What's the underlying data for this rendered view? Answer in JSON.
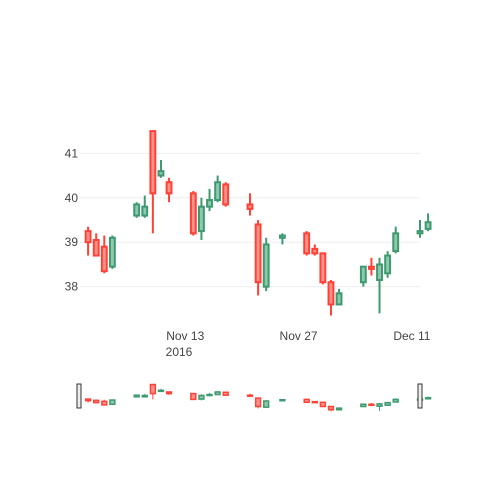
{
  "chart_data": {
    "type": "candlestick",
    "x_tick_labels": [
      "Nov 13",
      "Nov 27",
      "Dec 11"
    ],
    "x_tick_year": "2016",
    "x_tick_dates": [
      "2016-11-13",
      "2016-11-27",
      "2016-12-11"
    ],
    "y_ticks": [
      38,
      39,
      40,
      41
    ],
    "ylim": [
      37.25,
      42.2
    ],
    "xlim": [
      "2016-10-31",
      "2016-12-12"
    ],
    "grid": true,
    "rangeslider": true,
    "colors": {
      "increasing": "#3D9970",
      "decreasing": "#FF4136",
      "grid": "#eeeeee",
      "text": "#444444"
    },
    "candles": [
      {
        "date": "2016-11-01",
        "open": 39.25,
        "high": 39.35,
        "low": 38.7,
        "close": 39.0
      },
      {
        "date": "2016-11-02",
        "open": 39.05,
        "high": 39.2,
        "low": 38.7,
        "close": 38.7
      },
      {
        "date": "2016-11-03",
        "open": 38.9,
        "high": 39.15,
        "low": 38.3,
        "close": 38.35
      },
      {
        "date": "2016-11-04",
        "open": 38.45,
        "high": 39.15,
        "low": 38.4,
        "close": 39.1
      },
      {
        "date": "2016-11-07",
        "open": 39.6,
        "high": 39.9,
        "low": 39.55,
        "close": 39.85
      },
      {
        "date": "2016-11-08",
        "open": 39.6,
        "high": 40.05,
        "low": 39.55,
        "close": 39.8
      },
      {
        "date": "2016-11-09",
        "open": 41.5,
        "high": 41.5,
        "low": 39.2,
        "close": 40.1
      },
      {
        "date": "2016-11-10",
        "open": 40.5,
        "high": 40.85,
        "low": 40.45,
        "close": 40.6
      },
      {
        "date": "2016-11-11",
        "open": 40.35,
        "high": 40.45,
        "low": 39.9,
        "close": 40.1
      },
      {
        "date": "2016-11-14",
        "open": 40.1,
        "high": 40.15,
        "low": 39.15,
        "close": 39.2
      },
      {
        "date": "2016-11-15",
        "open": 39.25,
        "high": 40.0,
        "low": 39.05,
        "close": 39.8
      },
      {
        "date": "2016-11-16",
        "open": 39.8,
        "high": 40.2,
        "low": 39.7,
        "close": 39.95
      },
      {
        "date": "2016-11-17",
        "open": 39.95,
        "high": 40.5,
        "low": 39.9,
        "close": 40.35
      },
      {
        "date": "2016-11-18",
        "open": 40.3,
        "high": 40.35,
        "low": 39.8,
        "close": 39.85
      },
      {
        "date": "2016-11-21",
        "open": 39.85,
        "high": 40.1,
        "low": 39.6,
        "close": 39.75
      },
      {
        "date": "2016-11-22",
        "open": 39.4,
        "high": 39.5,
        "low": 37.8,
        "close": 38.1
      },
      {
        "date": "2016-11-23",
        "open": 38.0,
        "high": 39.1,
        "low": 37.9,
        "close": 38.95
      },
      {
        "date": "2016-11-25",
        "open": 39.1,
        "high": 39.2,
        "low": 38.95,
        "close": 39.15
      },
      {
        "date": "2016-11-28",
        "open": 39.2,
        "high": 39.25,
        "low": 38.7,
        "close": 38.75
      },
      {
        "date": "2016-11-29",
        "open": 38.85,
        "high": 38.95,
        "low": 38.7,
        "close": 38.75
      },
      {
        "date": "2016-11-30",
        "open": 38.75,
        "high": 38.75,
        "low": 38.05,
        "close": 38.1
      },
      {
        "date": "2016-12-01",
        "open": 38.1,
        "high": 38.15,
        "low": 37.35,
        "close": 37.6
      },
      {
        "date": "2016-12-02",
        "open": 37.6,
        "high": 37.95,
        "low": 37.6,
        "close": 37.85
      },
      {
        "date": "2016-12-05",
        "open": 38.1,
        "high": 38.45,
        "low": 38.0,
        "close": 38.45
      },
      {
        "date": "2016-12-06",
        "open": 38.45,
        "high": 38.65,
        "low": 38.25,
        "close": 38.4
      },
      {
        "date": "2016-12-07",
        "open": 38.15,
        "high": 38.65,
        "low": 37.4,
        "close": 38.5
      },
      {
        "date": "2016-12-08",
        "open": 38.3,
        "high": 38.8,
        "low": 38.2,
        "close": 38.7
      },
      {
        "date": "2016-12-09",
        "open": 38.8,
        "high": 39.35,
        "low": 38.75,
        "close": 39.2
      },
      {
        "date": "2016-12-12",
        "open": 39.2,
        "high": 39.5,
        "low": 39.1,
        "close": 39.25
      },
      {
        "date": "2016-12-13",
        "open": 39.3,
        "high": 39.65,
        "low": 39.25,
        "close": 39.45
      }
    ]
  }
}
